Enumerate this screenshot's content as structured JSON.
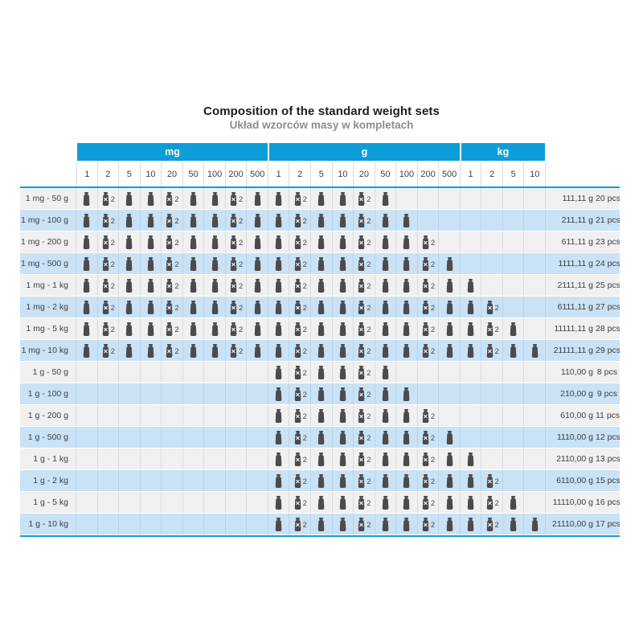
{
  "page": {
    "title": "Composition of the standard weight sets",
    "subtitle": "Układ wzorców masy w kompletach"
  },
  "colors": {
    "accent_blue": "#0d9dd9",
    "row_blue": "#c9e2f5",
    "row_gray": "#f0f0f1",
    "icon_gray": "#4b4b4e"
  },
  "table": {
    "groups": [
      {
        "label": "mg",
        "span": 9
      },
      {
        "label": "g",
        "span": 9
      },
      {
        "label": "kg",
        "span": 4
      }
    ],
    "columns": [
      "1",
      "2",
      "5",
      "10",
      "20",
      "50",
      "100",
      "200",
      "500",
      "1",
      "2",
      "5",
      "10",
      "20",
      "50",
      "100",
      "200",
      "500",
      "1",
      "2",
      "5",
      "10"
    ],
    "icons": {
      "single": "weight-icon",
      "double": "weight-x2-icon",
      "x2_label": "2"
    },
    "cell_legend": {
      "0": "empty",
      "1": "one piece",
      "2": "two pieces (x2)"
    },
    "rows": [
      {
        "label": "1 mg - 50 g",
        "cells": [
          1,
          2,
          1,
          1,
          2,
          1,
          1,
          2,
          1,
          1,
          2,
          1,
          1,
          2,
          1,
          0,
          0,
          0,
          0,
          0,
          0,
          0
        ],
        "total_mass": "111,11 g",
        "total_pcs": "20 pcs"
      },
      {
        "label": "1 mg - 100 g",
        "cells": [
          1,
          2,
          1,
          1,
          2,
          1,
          1,
          2,
          1,
          1,
          2,
          1,
          1,
          2,
          1,
          1,
          0,
          0,
          0,
          0,
          0,
          0
        ],
        "total_mass": "211,11 g",
        "total_pcs": "21 pcs"
      },
      {
        "label": "1 mg - 200 g",
        "cells": [
          1,
          2,
          1,
          1,
          2,
          1,
          1,
          2,
          1,
          1,
          2,
          1,
          1,
          2,
          1,
          1,
          2,
          0,
          0,
          0,
          0,
          0
        ],
        "total_mass": "611,11 g",
        "total_pcs": "23 pcs"
      },
      {
        "label": "1 mg - 500 g",
        "cells": [
          1,
          2,
          1,
          1,
          2,
          1,
          1,
          2,
          1,
          1,
          2,
          1,
          1,
          2,
          1,
          1,
          2,
          1,
          0,
          0,
          0,
          0
        ],
        "total_mass": "1111,11 g",
        "total_pcs": "24 pcs"
      },
      {
        "label": "1 mg - 1 kg",
        "cells": [
          1,
          2,
          1,
          1,
          2,
          1,
          1,
          2,
          1,
          1,
          2,
          1,
          1,
          2,
          1,
          1,
          2,
          1,
          1,
          0,
          0,
          0
        ],
        "total_mass": "2111,11 g",
        "total_pcs": "25 pcs"
      },
      {
        "label": "1 mg - 2 kg",
        "cells": [
          1,
          2,
          1,
          1,
          2,
          1,
          1,
          2,
          1,
          1,
          2,
          1,
          1,
          2,
          1,
          1,
          2,
          1,
          1,
          2,
          0,
          0
        ],
        "total_mass": "6111,11 g",
        "total_pcs": "27 pcs"
      },
      {
        "label": "1 mg - 5 kg",
        "cells": [
          1,
          2,
          1,
          1,
          2,
          1,
          1,
          2,
          1,
          1,
          2,
          1,
          1,
          2,
          1,
          1,
          2,
          1,
          1,
          2,
          1,
          0
        ],
        "total_mass": "11111,11 g",
        "total_pcs": "28 pcs"
      },
      {
        "label": "1 mg - 10 kg",
        "cells": [
          1,
          2,
          1,
          1,
          2,
          1,
          1,
          2,
          1,
          1,
          2,
          1,
          1,
          2,
          1,
          1,
          2,
          1,
          1,
          2,
          1,
          1
        ],
        "total_mass": "21111,11 g",
        "total_pcs": "29 pcs"
      },
      {
        "label": "1 g - 50 g",
        "cells": [
          0,
          0,
          0,
          0,
          0,
          0,
          0,
          0,
          0,
          1,
          2,
          1,
          1,
          2,
          1,
          0,
          0,
          0,
          0,
          0,
          0,
          0
        ],
        "total_mass": "110,00 g",
        "total_pcs": "8 pcs"
      },
      {
        "label": "1 g - 100 g",
        "cells": [
          0,
          0,
          0,
          0,
          0,
          0,
          0,
          0,
          0,
          1,
          2,
          1,
          1,
          2,
          1,
          1,
          0,
          0,
          0,
          0,
          0,
          0
        ],
        "total_mass": "210,00 g",
        "total_pcs": "9 pcs"
      },
      {
        "label": "1 g - 200 g",
        "cells": [
          0,
          0,
          0,
          0,
          0,
          0,
          0,
          0,
          0,
          1,
          2,
          1,
          1,
          2,
          1,
          1,
          2,
          0,
          0,
          0,
          0,
          0
        ],
        "total_mass": "610,00 g",
        "total_pcs": "11 pcs"
      },
      {
        "label": "1 g - 500 g",
        "cells": [
          0,
          0,
          0,
          0,
          0,
          0,
          0,
          0,
          0,
          1,
          2,
          1,
          1,
          2,
          1,
          1,
          2,
          1,
          0,
          0,
          0,
          0
        ],
        "total_mass": "1110,00 g",
        "total_pcs": "12 pcs"
      },
      {
        "label": "1 g - 1 kg",
        "cells": [
          0,
          0,
          0,
          0,
          0,
          0,
          0,
          0,
          0,
          1,
          2,
          1,
          1,
          2,
          1,
          1,
          2,
          1,
          1,
          0,
          0,
          0
        ],
        "total_mass": "2110,00 g",
        "total_pcs": "13 pcs"
      },
      {
        "label": "1 g - 2 kg",
        "cells": [
          0,
          0,
          0,
          0,
          0,
          0,
          0,
          0,
          0,
          1,
          2,
          1,
          1,
          2,
          1,
          1,
          2,
          1,
          1,
          2,
          0,
          0
        ],
        "total_mass": "6110,00 g",
        "total_pcs": "15 pcs"
      },
      {
        "label": "1 g - 5 kg",
        "cells": [
          0,
          0,
          0,
          0,
          0,
          0,
          0,
          0,
          0,
          1,
          2,
          1,
          1,
          2,
          1,
          1,
          2,
          1,
          1,
          2,
          1,
          0
        ],
        "total_mass": "11110,00 g",
        "total_pcs": "16 pcs"
      },
      {
        "label": "1 g - 10 kg",
        "cells": [
          0,
          0,
          0,
          0,
          0,
          0,
          0,
          0,
          0,
          1,
          2,
          1,
          1,
          2,
          1,
          1,
          2,
          1,
          1,
          2,
          1,
          1
        ],
        "total_mass": "21110,00 g",
        "total_pcs": "17 pcs"
      }
    ]
  }
}
